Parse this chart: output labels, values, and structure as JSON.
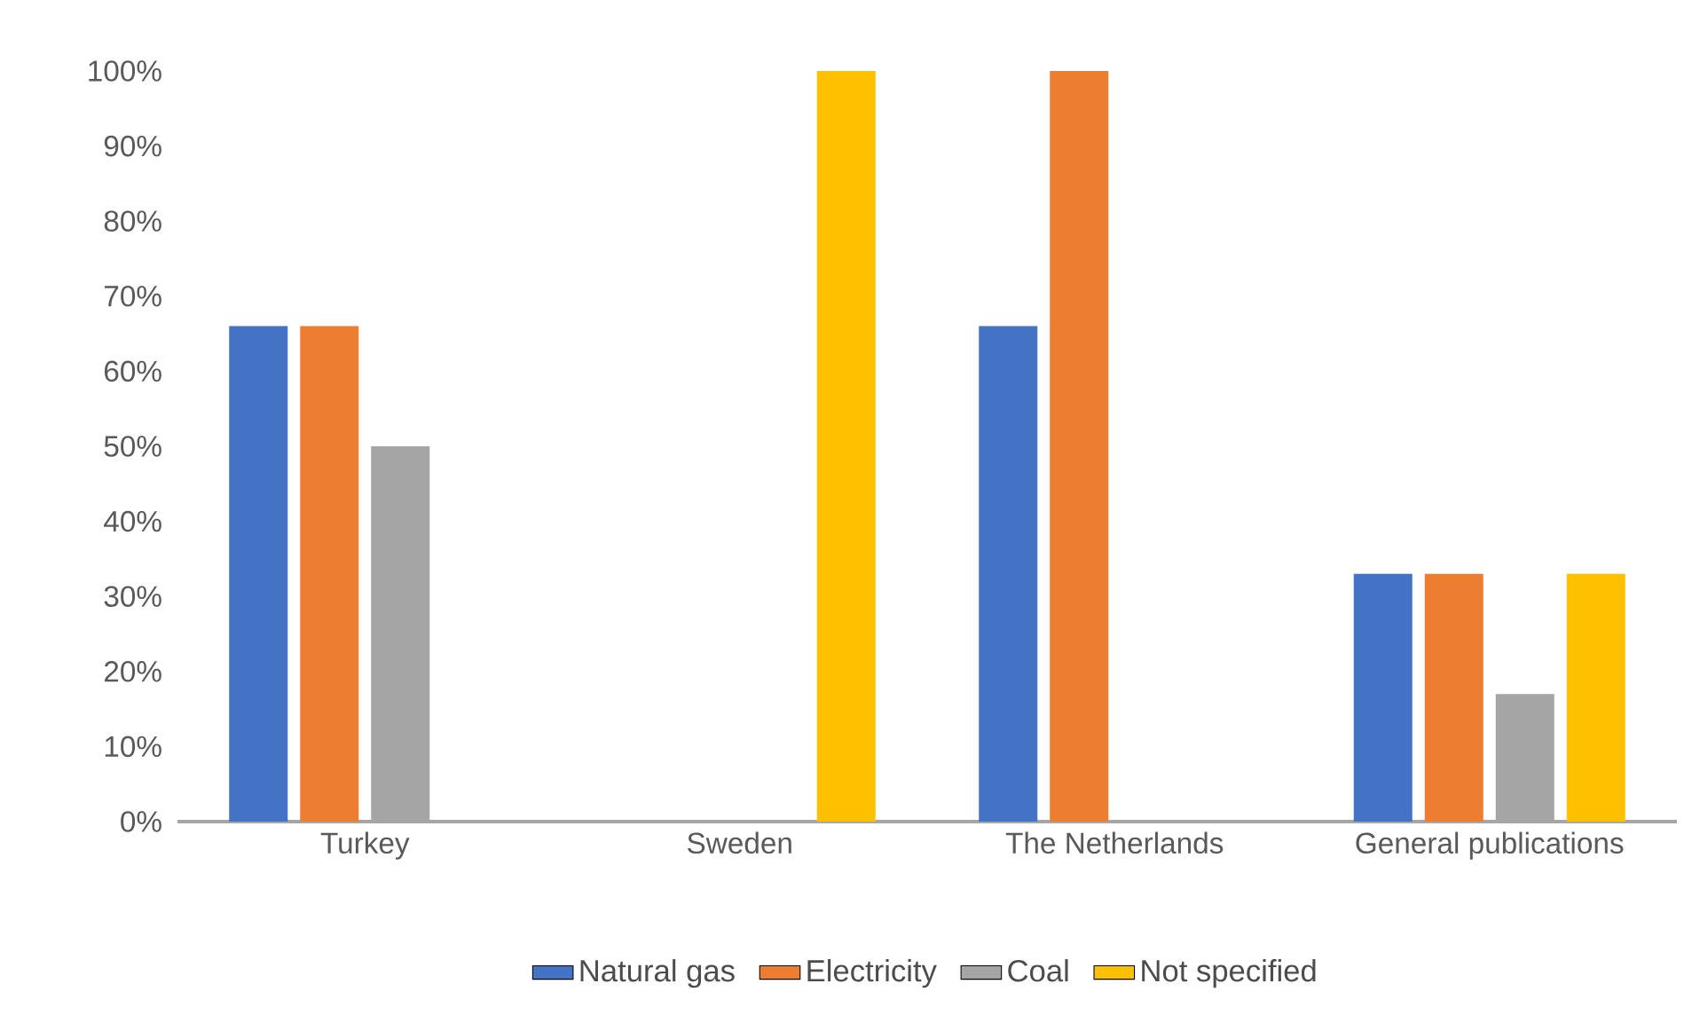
{
  "chart_data": {
    "type": "bar",
    "categories": [
      "Turkey",
      "Sweden",
      "The Netherlands",
      "General publications"
    ],
    "series": [
      {
        "name": "Natural gas",
        "color": "#4472c4",
        "values": [
          66,
          null,
          66,
          33
        ]
      },
      {
        "name": "Electricity",
        "color": "#ed7d31",
        "values": [
          66,
          null,
          100,
          33
        ]
      },
      {
        "name": "Coal",
        "color": "#a5a5a5",
        "values": [
          50,
          null,
          null,
          17
        ]
      },
      {
        "name": "Not specified",
        "color": "#ffc000",
        "values": [
          null,
          100,
          null,
          33
        ]
      }
    ],
    "ylim": [
      0,
      100
    ],
    "yticks": [
      {
        "value": 0,
        "label": "0%"
      },
      {
        "value": 10,
        "label": "10%"
      },
      {
        "value": 20,
        "label": "20%"
      },
      {
        "value": 30,
        "label": "30%"
      },
      {
        "value": 40,
        "label": "40%"
      },
      {
        "value": 50,
        "label": "50%"
      },
      {
        "value": 60,
        "label": "60%"
      },
      {
        "value": 70,
        "label": "70%"
      },
      {
        "value": 80,
        "label": "80%"
      },
      {
        "value": 90,
        "label": "90%"
      },
      {
        "value": 100,
        "label": "100%"
      }
    ],
    "grid": false,
    "legend": "bottom"
  }
}
